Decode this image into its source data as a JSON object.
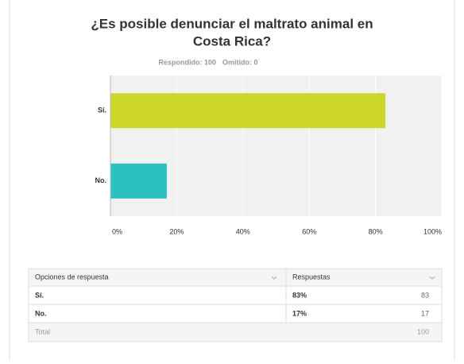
{
  "chart_data": {
    "type": "bar",
    "horizontal": true,
    "title": [
      "¿Es posible denunciar el maltrato animal en",
      "Costa Rica?"
    ],
    "subtitle": [
      "Respondido: 100",
      "Omitido: 0"
    ],
    "categories": [
      "Sí.",
      "No."
    ],
    "values": [
      83,
      17
    ],
    "colors": [
      "#cdd62a",
      "#2cc0bf"
    ],
    "xlim": [
      0,
      100
    ],
    "xticks": [
      {
        "value": 0,
        "label": "0%"
      },
      {
        "value": 20,
        "label": "20%"
      },
      {
        "value": 40,
        "label": "40%"
      },
      {
        "value": 60,
        "label": "60%"
      },
      {
        "value": 80,
        "label": "80%"
      },
      {
        "value": 100,
        "label": "100%"
      }
    ],
    "grid": true
  },
  "table": {
    "header": [
      "Opciones de respuesta",
      "Respuestas"
    ],
    "rows": [
      [
        "Sí.",
        "83%",
        "83"
      ],
      [
        "No.",
        "17%",
        "17"
      ]
    ],
    "total": [
      "Total",
      "100"
    ]
  }
}
